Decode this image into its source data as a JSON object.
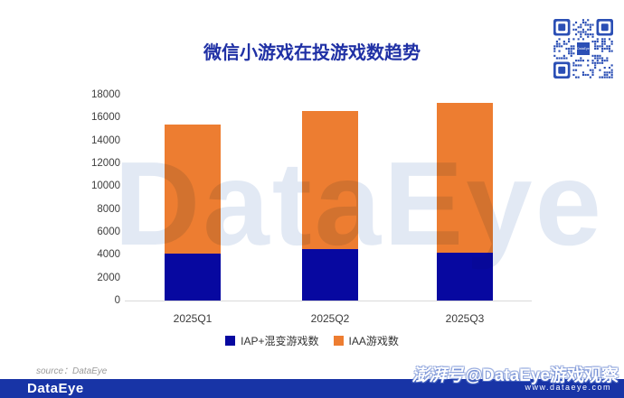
{
  "title": "微信小游戏在投游戏数趋势",
  "chart_data": {
    "type": "bar",
    "stacked": true,
    "title": "微信小游戏在投游戏数趋势",
    "categories": [
      "2025Q1",
      "2025Q2",
      "2025Q3"
    ],
    "series": [
      {
        "name": "IAP+混变游戏数",
        "color": "#0708A0",
        "values": [
          4100,
          4500,
          4200
        ]
      },
      {
        "name": "IAA游戏数",
        "color": "#ED7D31",
        "values": [
          11300,
          12100,
          13100
        ]
      }
    ],
    "totals": [
      15400,
      16600,
      17300
    ],
    "ylim": [
      0,
      18000
    ],
    "ytick_step": 2000,
    "grid": false,
    "legend_position": "bottom"
  },
  "legend": [
    {
      "label": "IAP+混变游戏数",
      "color": "#0708A0"
    },
    {
      "label": "IAA游戏数",
      "color": "#ED7D31"
    }
  ],
  "watermark_text": "DataEye",
  "source_note": "source：DataEye",
  "footer": {
    "logo_text": "DataEye",
    "pengpai_label": "澎湃号",
    "account_text": "@DataEye游戏观察",
    "website_text": "www.dataeye.com"
  },
  "qr": {
    "center_label": "DataEye"
  },
  "colors": {
    "title_text": "#2031A5",
    "bar_blue": "#0708A0",
    "bar_orange": "#ED7D31",
    "footer_bar": "#1834A6",
    "qr_blue": "#2B4FB5",
    "axis_line": "#D9D9D9",
    "tick_text": "#3d3d3d",
    "watermark": "#E2E9F4"
  }
}
